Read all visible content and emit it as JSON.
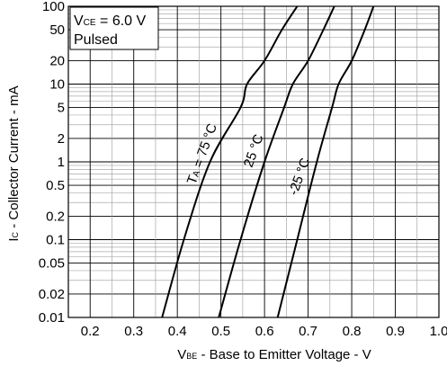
{
  "chart_data": {
    "type": "line",
    "title": "",
    "xlabel": "V",
    "xlabel_sub": "BE",
    "xlabel_rest": " - Base to Emitter Voltage - V",
    "ylabel": "I",
    "ylabel_sub": "C",
    "ylabel_rest": " - Collector Current - mA",
    "x_scale": "linear",
    "y_scale": "log",
    "xlim": [
      0.15,
      1.0
    ],
    "ylim": [
      0.01,
      100
    ],
    "x_ticks": [
      0.2,
      0.3,
      0.4,
      0.5,
      0.6,
      0.7,
      0.8,
      0.9,
      1.0
    ],
    "x_tick_labels": [
      "0.2",
      "0.3",
      "0.4",
      "0.5",
      "0.6",
      "0.7",
      "0.8",
      "0.9",
      "1.0"
    ],
    "y_ticks": [
      0.01,
      0.02,
      0.05,
      0.1,
      0.2,
      0.5,
      1,
      2,
      5,
      10,
      20,
      50,
      100
    ],
    "y_tick_labels": [
      "0.01",
      "0.02",
      "0.05",
      "0.1",
      "0.2",
      "0.5",
      "1",
      "2",
      "5",
      "10",
      "20",
      "50",
      "100"
    ],
    "grid": true,
    "annotation": {
      "line1_main": "V",
      "line1_sub": "CE",
      "line1_rest": " = 6.0 V",
      "line2": "Pulsed"
    },
    "series": [
      {
        "name": "T_A = 75 °C",
        "label_main": "T",
        "label_sub": "A",
        "label_rest": " = 75 °C",
        "points": [
          [
            0.365,
            0.01
          ],
          [
            0.415,
            0.1
          ],
          [
            0.475,
            1
          ],
          [
            0.545,
            5
          ],
          [
            0.56,
            10
          ],
          [
            0.6,
            20
          ],
          [
            0.64,
            50
          ],
          [
            0.675,
            100
          ]
        ]
      },
      {
        "name": "25 °C",
        "label_main": "25 °C",
        "points": [
          [
            0.495,
            0.01
          ],
          [
            0.545,
            0.1
          ],
          [
            0.6,
            1
          ],
          [
            0.645,
            5
          ],
          [
            0.665,
            10
          ],
          [
            0.7,
            20
          ],
          [
            0.735,
            50
          ],
          [
            0.76,
            100
          ]
        ]
      },
      {
        "name": "-25 °C",
        "label_main": "-25 °C",
        "points": [
          [
            0.63,
            0.01
          ],
          [
            0.675,
            0.1
          ],
          [
            0.72,
            1
          ],
          [
            0.755,
            5
          ],
          [
            0.77,
            10
          ],
          [
            0.8,
            20
          ],
          [
            0.83,
            50
          ],
          [
            0.85,
            100
          ]
        ]
      }
    ]
  }
}
